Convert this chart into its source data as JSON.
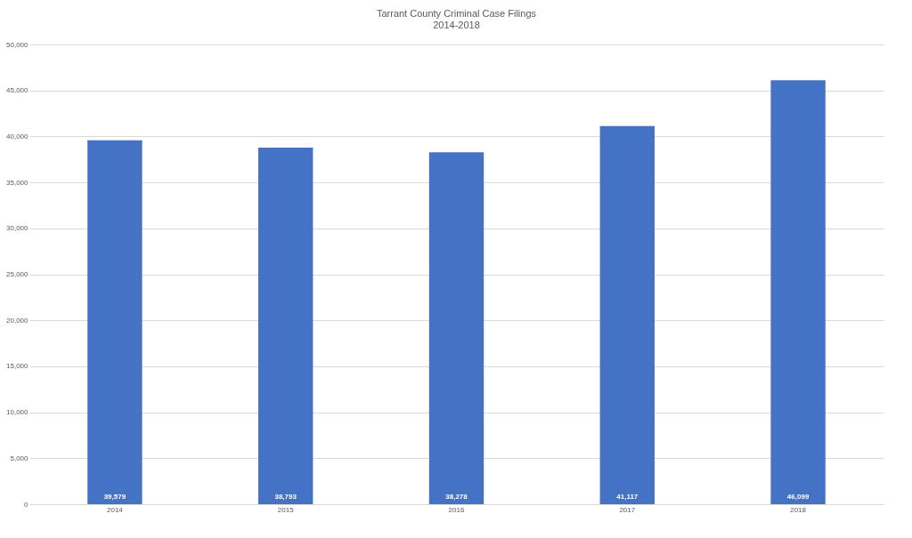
{
  "chart_data": {
    "type": "bar",
    "title": "Tarrant County Criminal Case Filings",
    "subtitle": "2014-2018",
    "categories": [
      "2014",
      "2015",
      "2016",
      "2017",
      "2018"
    ],
    "values": [
      39579,
      38793,
      38278,
      41117,
      46099
    ],
    "value_labels": [
      "39,579",
      "38,793",
      "38,278",
      "41,117",
      "46,099"
    ],
    "color": "#4472c4",
    "ylim": [
      0,
      50000
    ],
    "yticks": [
      0,
      {
        "value": 5000,
        "label": "5,000"
      },
      {
        "value": 10000,
        "label": "10,000"
      },
      {
        "value": 15000,
        "label": "15,000"
      },
      {
        "value": 20000,
        "label": "20,000"
      },
      {
        "value": 25000,
        "label": "25,000"
      },
      {
        "value": 30000,
        "label": "30,000"
      },
      {
        "value": 35000,
        "label": "35,000"
      },
      {
        "value": 40000,
        "label": "40,000"
      },
      {
        "value": 45000,
        "label": "45,000"
      },
      {
        "value": 50000,
        "label": "50,000"
      }
    ],
    "grid": "y"
  }
}
